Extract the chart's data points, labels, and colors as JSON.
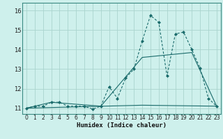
{
  "xlabel": "Humidex (Indice chaleur)",
  "background_color": "#cef0ec",
  "grid_color": "#aad4ce",
  "line_color": "#1a6b6b",
  "spine_color": "#3a8a82",
  "xlim": [
    -0.5,
    23.5
  ],
  "ylim": [
    10.7,
    16.4
  ],
  "yticks": [
    11,
    12,
    13,
    14,
    15,
    16
  ],
  "xticks": [
    0,
    1,
    2,
    3,
    4,
    5,
    6,
    7,
    8,
    9,
    10,
    11,
    12,
    13,
    14,
    15,
    16,
    17,
    18,
    19,
    20,
    21,
    22,
    23
  ],
  "series1_x": [
    0,
    1,
    2,
    3,
    4,
    5,
    6,
    7,
    8,
    9,
    10,
    11,
    12,
    13,
    14,
    15,
    16,
    17,
    18,
    19,
    20,
    21,
    22,
    23
  ],
  "series1_y": [
    11.0,
    11.1,
    11.1,
    11.3,
    11.3,
    11.1,
    11.1,
    11.1,
    10.95,
    11.1,
    12.1,
    11.5,
    12.55,
    13.0,
    14.45,
    15.75,
    15.4,
    12.65,
    14.8,
    14.9,
    14.0,
    13.05,
    11.5,
    11.1
  ],
  "series2_x": [
    0,
    14,
    23
  ],
  "series2_y": [
    11.0,
    11.15,
    11.1
  ],
  "series3_x": [
    0,
    3,
    9,
    14,
    20,
    23
  ],
  "series3_y": [
    11.0,
    11.3,
    11.1,
    13.6,
    13.85,
    11.1
  ]
}
